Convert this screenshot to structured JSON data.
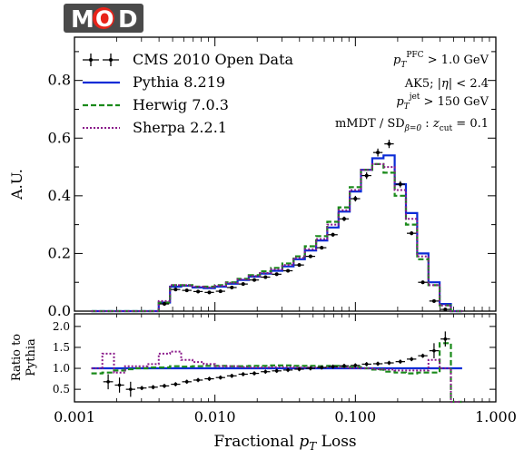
{
  "logo": {
    "text_left": "M",
    "text_circle": "O",
    "text_right": "D"
  },
  "chart_data": {
    "type": "line",
    "xscale": "log",
    "xlim": [
      0.001,
      1.0
    ],
    "xlabel": "Fractional pT Loss",
    "x_ticks": [
      {
        "value": 0.001,
        "label": "0.001"
      },
      {
        "value": 0.01,
        "label": "0.010"
      },
      {
        "value": 0.1,
        "label": "0.100"
      },
      {
        "value": 1.0,
        "label": "1.000"
      }
    ],
    "top_panel": {
      "ylabel": "A.U.",
      "ylim": [
        0,
        0.95
      ],
      "y_ticks": [
        {
          "value": 0.0,
          "label": "0.0"
        },
        {
          "value": 0.2,
          "label": "0.2"
        },
        {
          "value": 0.4,
          "label": "0.4"
        },
        {
          "value": 0.6,
          "label": "0.6"
        },
        {
          "value": 0.8,
          "label": "0.8"
        }
      ]
    },
    "ratio_panel": {
      "ylabel_line1": "Ratio to",
      "ylabel_line2": "Pythia",
      "ylim": [
        0.2,
        2.3
      ],
      "y_ticks": [
        {
          "value": 0.5,
          "label": "0.5"
        },
        {
          "value": 1.0,
          "label": "1.0"
        },
        {
          "value": 1.5,
          "label": "1.5"
        },
        {
          "value": 2.0,
          "label": "2.0"
        }
      ]
    },
    "bin_edges": [
      0.00132,
      0.00158,
      0.00191,
      0.00229,
      0.00275,
      0.00331,
      0.00398,
      0.00479,
      0.00575,
      0.00692,
      0.00832,
      0.01,
      0.012,
      0.0145,
      0.0174,
      0.0209,
      0.0251,
      0.0302,
      0.0363,
      0.0437,
      0.0525,
      0.0631,
      0.0759,
      0.0912,
      0.1096,
      0.1318,
      0.1585,
      0.1905,
      0.2291,
      0.2754,
      0.3311,
      0.3981,
      0.4786,
      0.5754
    ],
    "series": [
      {
        "name": "CMS 2010 Open Data",
        "style": "errorbar",
        "color": "#000000",
        "values": [
          0.0,
          0.0,
          0.0,
          0.0,
          0.0,
          0.0,
          0.025,
          0.075,
          0.072,
          0.068,
          0.065,
          0.069,
          0.082,
          0.094,
          0.108,
          0.118,
          0.128,
          0.14,
          0.16,
          0.19,
          0.22,
          0.265,
          0.32,
          0.39,
          0.47,
          0.55,
          0.58,
          0.44,
          0.27,
          0.1,
          0.035,
          0.006,
          0.0
        ],
        "ratio": [
          null,
          0.68,
          0.6,
          0.5,
          0.53,
          0.55,
          0.58,
          0.62,
          0.68,
          0.72,
          0.75,
          0.78,
          0.82,
          0.86,
          0.88,
          0.92,
          0.94,
          0.96,
          0.98,
          1.0,
          1.02,
          1.04,
          1.06,
          1.07,
          1.1,
          1.11,
          1.13,
          1.16,
          1.22,
          1.3,
          1.42,
          1.7,
          null
        ]
      },
      {
        "name": "Pythia 8.219",
        "style": "step-solid",
        "color": "#0a2bd6",
        "values": [
          0.0,
          0.0,
          0.0,
          0.0,
          0.0,
          0.0,
          0.03,
          0.085,
          0.088,
          0.082,
          0.08,
          0.085,
          0.095,
          0.108,
          0.12,
          0.13,
          0.14,
          0.155,
          0.18,
          0.21,
          0.245,
          0.29,
          0.345,
          0.415,
          0.49,
          0.53,
          0.54,
          0.44,
          0.34,
          0.2,
          0.1,
          0.025,
          0.0
        ],
        "ratio": [
          1.0,
          1.0,
          1.0,
          1.0,
          1.0,
          1.0,
          1.0,
          1.0,
          1.0,
          1.0,
          1.0,
          1.0,
          1.0,
          1.0,
          1.0,
          1.0,
          1.0,
          1.0,
          1.0,
          1.0,
          1.0,
          1.0,
          1.0,
          1.0,
          1.0,
          1.0,
          1.0,
          1.0,
          1.0,
          1.0,
          1.0,
          1.0,
          1.0
        ]
      },
      {
        "name": "Herwig 7.0.3",
        "style": "step-dashed",
        "color": "#1a8a1a",
        "values": [
          0.0,
          0.0,
          0.0,
          0.0,
          0.0,
          0.0,
          0.03,
          0.09,
          0.09,
          0.085,
          0.085,
          0.09,
          0.1,
          0.112,
          0.125,
          0.138,
          0.15,
          0.165,
          0.19,
          0.225,
          0.26,
          0.31,
          0.36,
          0.43,
          0.49,
          0.51,
          0.48,
          0.4,
          0.3,
          0.18,
          0.09,
          0.02,
          0.0
        ],
        "ratio": [
          0.88,
          0.9,
          0.95,
          0.98,
          1.0,
          1.02,
          1.02,
          1.05,
          1.04,
          1.05,
          1.06,
          1.06,
          1.05,
          1.05,
          1.06,
          1.06,
          1.07,
          1.07,
          1.06,
          1.06,
          1.05,
          1.06,
          1.04,
          1.03,
          1.0,
          0.97,
          0.92,
          0.9,
          0.88,
          0.9,
          0.9,
          1.6,
          0.0
        ]
      },
      {
        "name": "Sherpa 2.2.1",
        "style": "step-dotted",
        "color": "#8a1a8a",
        "values": [
          0.0,
          0.0,
          0.0,
          0.0,
          0.0,
          0.0,
          0.035,
          0.09,
          0.09,
          0.085,
          0.082,
          0.088,
          0.098,
          0.11,
          0.122,
          0.132,
          0.145,
          0.16,
          0.185,
          0.215,
          0.25,
          0.3,
          0.35,
          0.42,
          0.49,
          0.51,
          0.5,
          0.42,
          0.32,
          0.19,
          0.09,
          0.02,
          0.0
        ],
        "ratio": [
          1.0,
          1.35,
          0.9,
          1.05,
          1.05,
          1.1,
          1.35,
          1.4,
          1.2,
          1.15,
          1.1,
          1.05,
          1.05,
          1.03,
          1.02,
          1.02,
          1.03,
          1.03,
          1.02,
          1.02,
          1.02,
          1.03,
          1.02,
          1.01,
          1.0,
          0.98,
          0.97,
          0.95,
          0.95,
          0.95,
          1.2,
          1.0,
          0.0
        ]
      }
    ],
    "annotations": [
      {
        "pre": "p",
        "sub": "T",
        "sup": "PFC",
        "post": " > 1.0 GeV"
      },
      {
        "pre": "AK5; |η| < 2.4",
        "sub": "",
        "sup": "",
        "post": ""
      },
      {
        "pre": "p",
        "sub": "T",
        "sup": "jet",
        "post": " > 150 GeV"
      },
      {
        "pre": "mMDT / SD",
        "sub": "β=0",
        "sup": "",
        "post": " : z"
      },
      {
        "pre": "",
        "sub": "cut",
        "sup": "",
        "post": " = 0.1"
      }
    ]
  }
}
